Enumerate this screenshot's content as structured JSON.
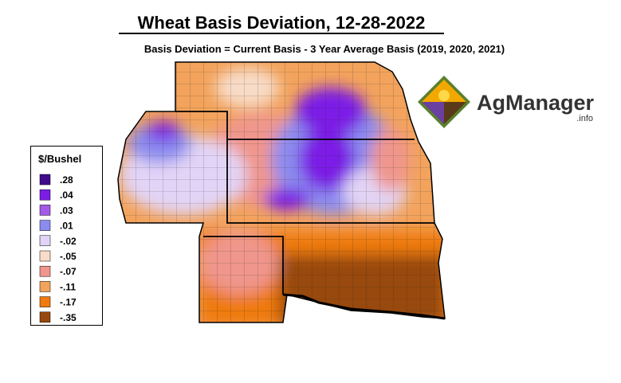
{
  "header": {
    "title": "Wheat Basis Deviation, 12-28-2022",
    "subtitle": "Basis Deviation = Current Basis - 3 Year Average Basis (2019, 2020, 2021)"
  },
  "legend": {
    "title": "$/Bushel",
    "items": [
      {
        "label": ".28",
        "color": "#3f0c8c"
      },
      {
        "label": ".04",
        "color": "#7b1de6"
      },
      {
        "label": ".03",
        "color": "#a45be6"
      },
      {
        "label": ".01",
        "color": "#8c8cef"
      },
      {
        "label": "-.02",
        "color": "#e2d4f6"
      },
      {
        "label": "-.05",
        "color": "#f8dcc8"
      },
      {
        "label": "-.07",
        "color": "#f0968c"
      },
      {
        "label": "-.11",
        "color": "#f3a35c"
      },
      {
        "label": "-.17",
        "color": "#ef7a10"
      },
      {
        "label": "-.35",
        "color": "#98480c"
      }
    ]
  },
  "logo": {
    "name": "AgManager",
    "suffix": ".info"
  }
}
